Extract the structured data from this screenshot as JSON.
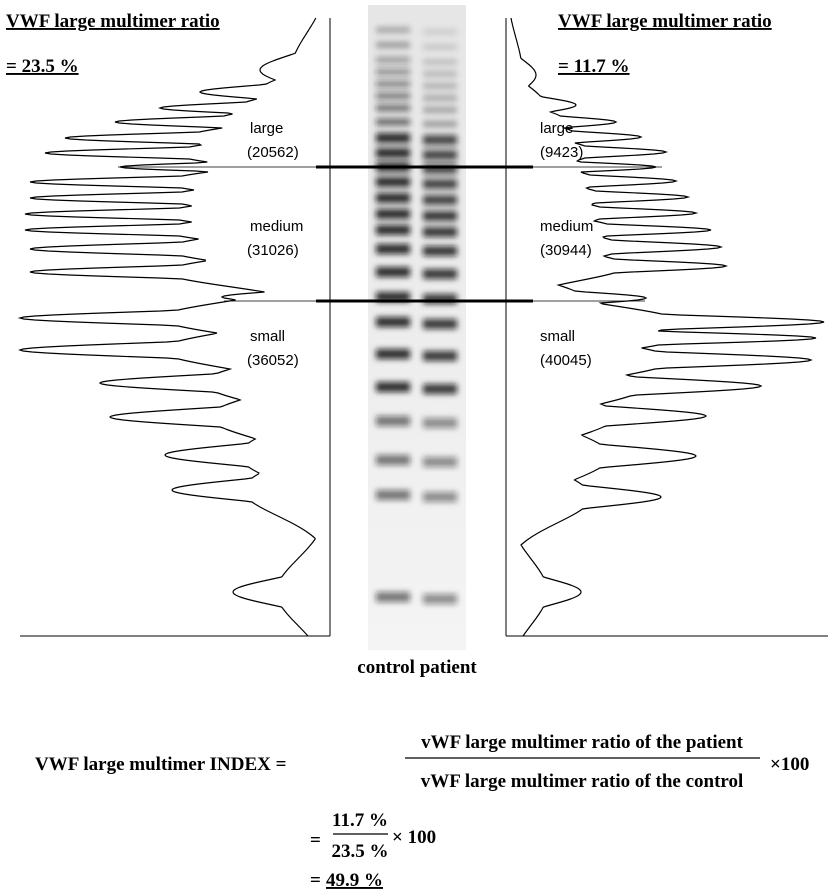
{
  "left_panel": {
    "title": "VWF large multimer ratio",
    "ratio": "= 23.5 %",
    "regions": [
      {
        "label": "large",
        "value": "(20562)"
      },
      {
        "label": "medium",
        "value": "(31026)"
      },
      {
        "label": "small",
        "value": "(36052)"
      }
    ]
  },
  "right_panel": {
    "title": "VWF large multimer ratio",
    "ratio": "= 11.7 %",
    "regions": [
      {
        "label": "large",
        "value": "(9423)"
      },
      {
        "label": "medium",
        "value": "(30944)"
      },
      {
        "label": "small",
        "value": "(40045)"
      }
    ]
  },
  "gel": {
    "caption": "control patient"
  },
  "formula": {
    "lhs": "VWF large multimer INDEX =",
    "numerator": "vWF large multimer ratio of the patient",
    "denominator": "vWF large multimer ratio of the control",
    "multiplier": "×100",
    "step": {
      "prefix": "=",
      "numerator": "11.7 %",
      "denominator": "23.5 %",
      "multiplier": "× 100"
    },
    "result": {
      "prefix": "=",
      "value": "49.9 %"
    }
  }
}
